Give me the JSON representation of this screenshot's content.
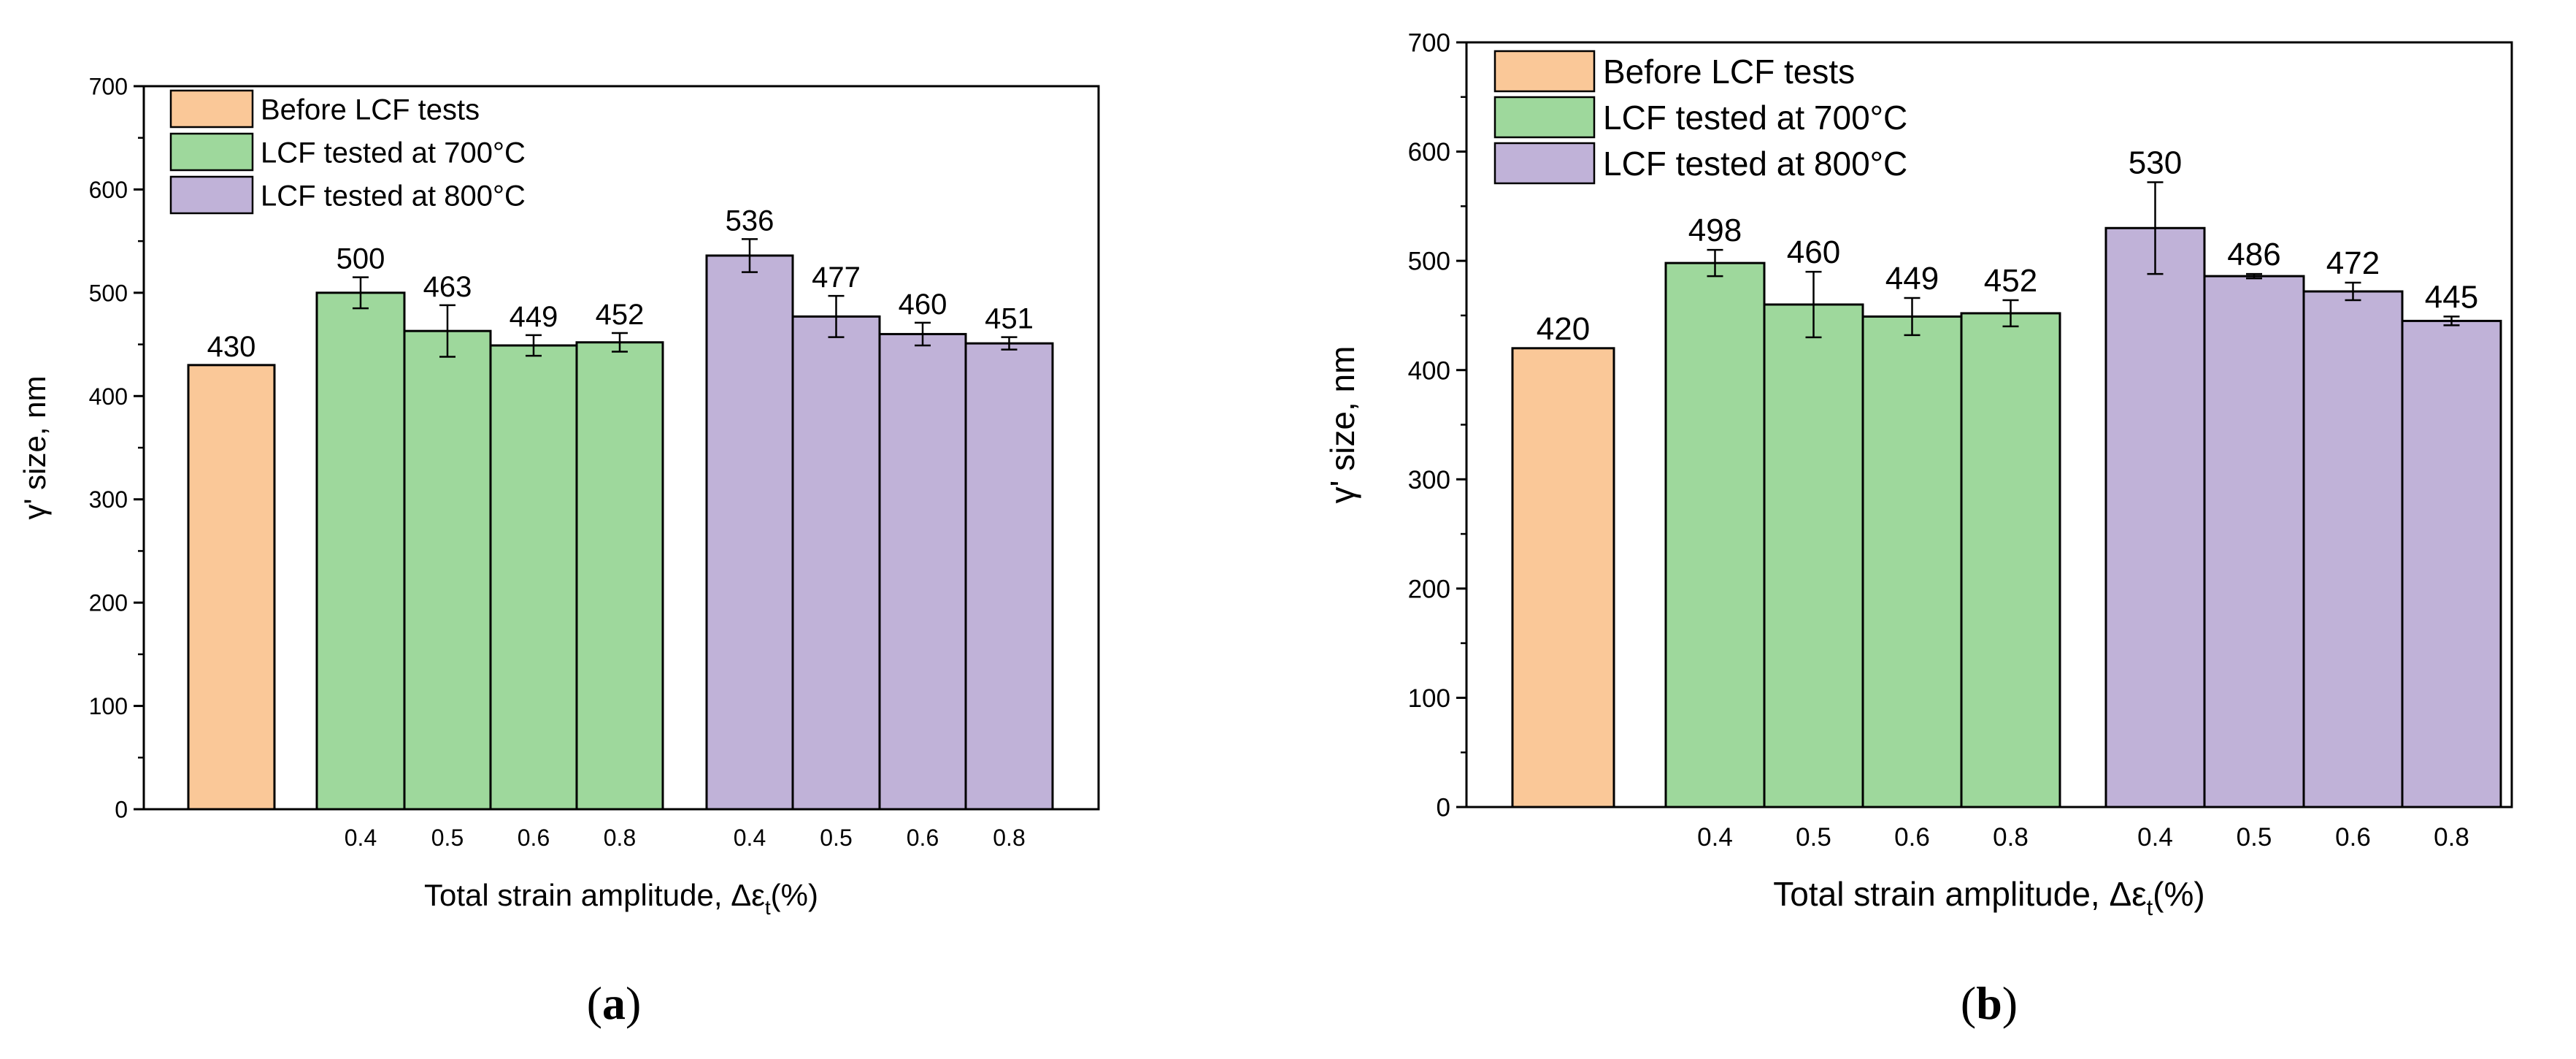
{
  "chart_data": [
    {
      "type": "bar",
      "panel_label": "(a)",
      "panel_letter": "a",
      "ylabel": "γ' size, nm",
      "xlabel_main": "Total strain amplitude, Δε",
      "xlabel_sub": "t",
      "xlabel_tail": "(%)",
      "ylim": [
        0,
        700
      ],
      "yticks": [
        "0",
        "100",
        "200",
        "300",
        "400",
        "500",
        "600",
        "700"
      ],
      "legend_placement": "top-left",
      "series": [
        {
          "name": "Before LCF tests",
          "color": "#FAC898",
          "categories": [
            ""
          ],
          "values": [
            430
          ],
          "labels": [
            "430"
          ],
          "errors": [
            0
          ]
        },
        {
          "name": "LCF tested at 700°C",
          "color": "#9ED89C",
          "categories": [
            "0.4",
            "0.5",
            "0.6",
            "0.8"
          ],
          "values": [
            500,
            463,
            449,
            452
          ],
          "labels": [
            "500",
            "463",
            "449",
            "452"
          ],
          "errors": [
            15,
            25,
            10,
            9
          ]
        },
        {
          "name": "LCF tested at 800°C",
          "color": "#C0B2D8",
          "categories": [
            "0.4",
            "0.5",
            "0.6",
            "0.8"
          ],
          "values": [
            536,
            477,
            460,
            451
          ],
          "labels": [
            "536",
            "477",
            "460",
            "451"
          ],
          "errors": [
            16,
            20,
            11,
            6
          ]
        }
      ]
    },
    {
      "type": "bar",
      "panel_label": "(b)",
      "panel_letter": "b",
      "ylabel": "γ' size, nm",
      "xlabel_main": "Total strain amplitude, Δε",
      "xlabel_sub": "t",
      "xlabel_tail": "(%)",
      "ylim": [
        0,
        700
      ],
      "yticks": [
        "0",
        "100",
        "200",
        "300",
        "400",
        "500",
        "600",
        "700"
      ],
      "legend_placement": "top-left",
      "series": [
        {
          "name": "Before LCF tests",
          "color": "#FAC898",
          "categories": [
            ""
          ],
          "values": [
            420
          ],
          "labels": [
            "420"
          ],
          "errors": [
            0
          ]
        },
        {
          "name": "LCF tested at 700°C",
          "color": "#9ED89C",
          "categories": [
            "0.4",
            "0.5",
            "0.6",
            "0.8"
          ],
          "values": [
            498,
            460,
            449,
            452
          ],
          "labels": [
            "498",
            "460",
            "449",
            "452"
          ],
          "errors": [
            12,
            30,
            17,
            12
          ]
        },
        {
          "name": "LCF tested at 800°C",
          "color": "#C0B2D8",
          "categories": [
            "0.4",
            "0.5",
            "0.6",
            "0.8"
          ],
          "values": [
            530,
            486,
            472,
            445
          ],
          "labels": [
            "530",
            "486",
            "472",
            "445"
          ],
          "errors": [
            42,
            2,
            8,
            4
          ]
        }
      ]
    }
  ]
}
